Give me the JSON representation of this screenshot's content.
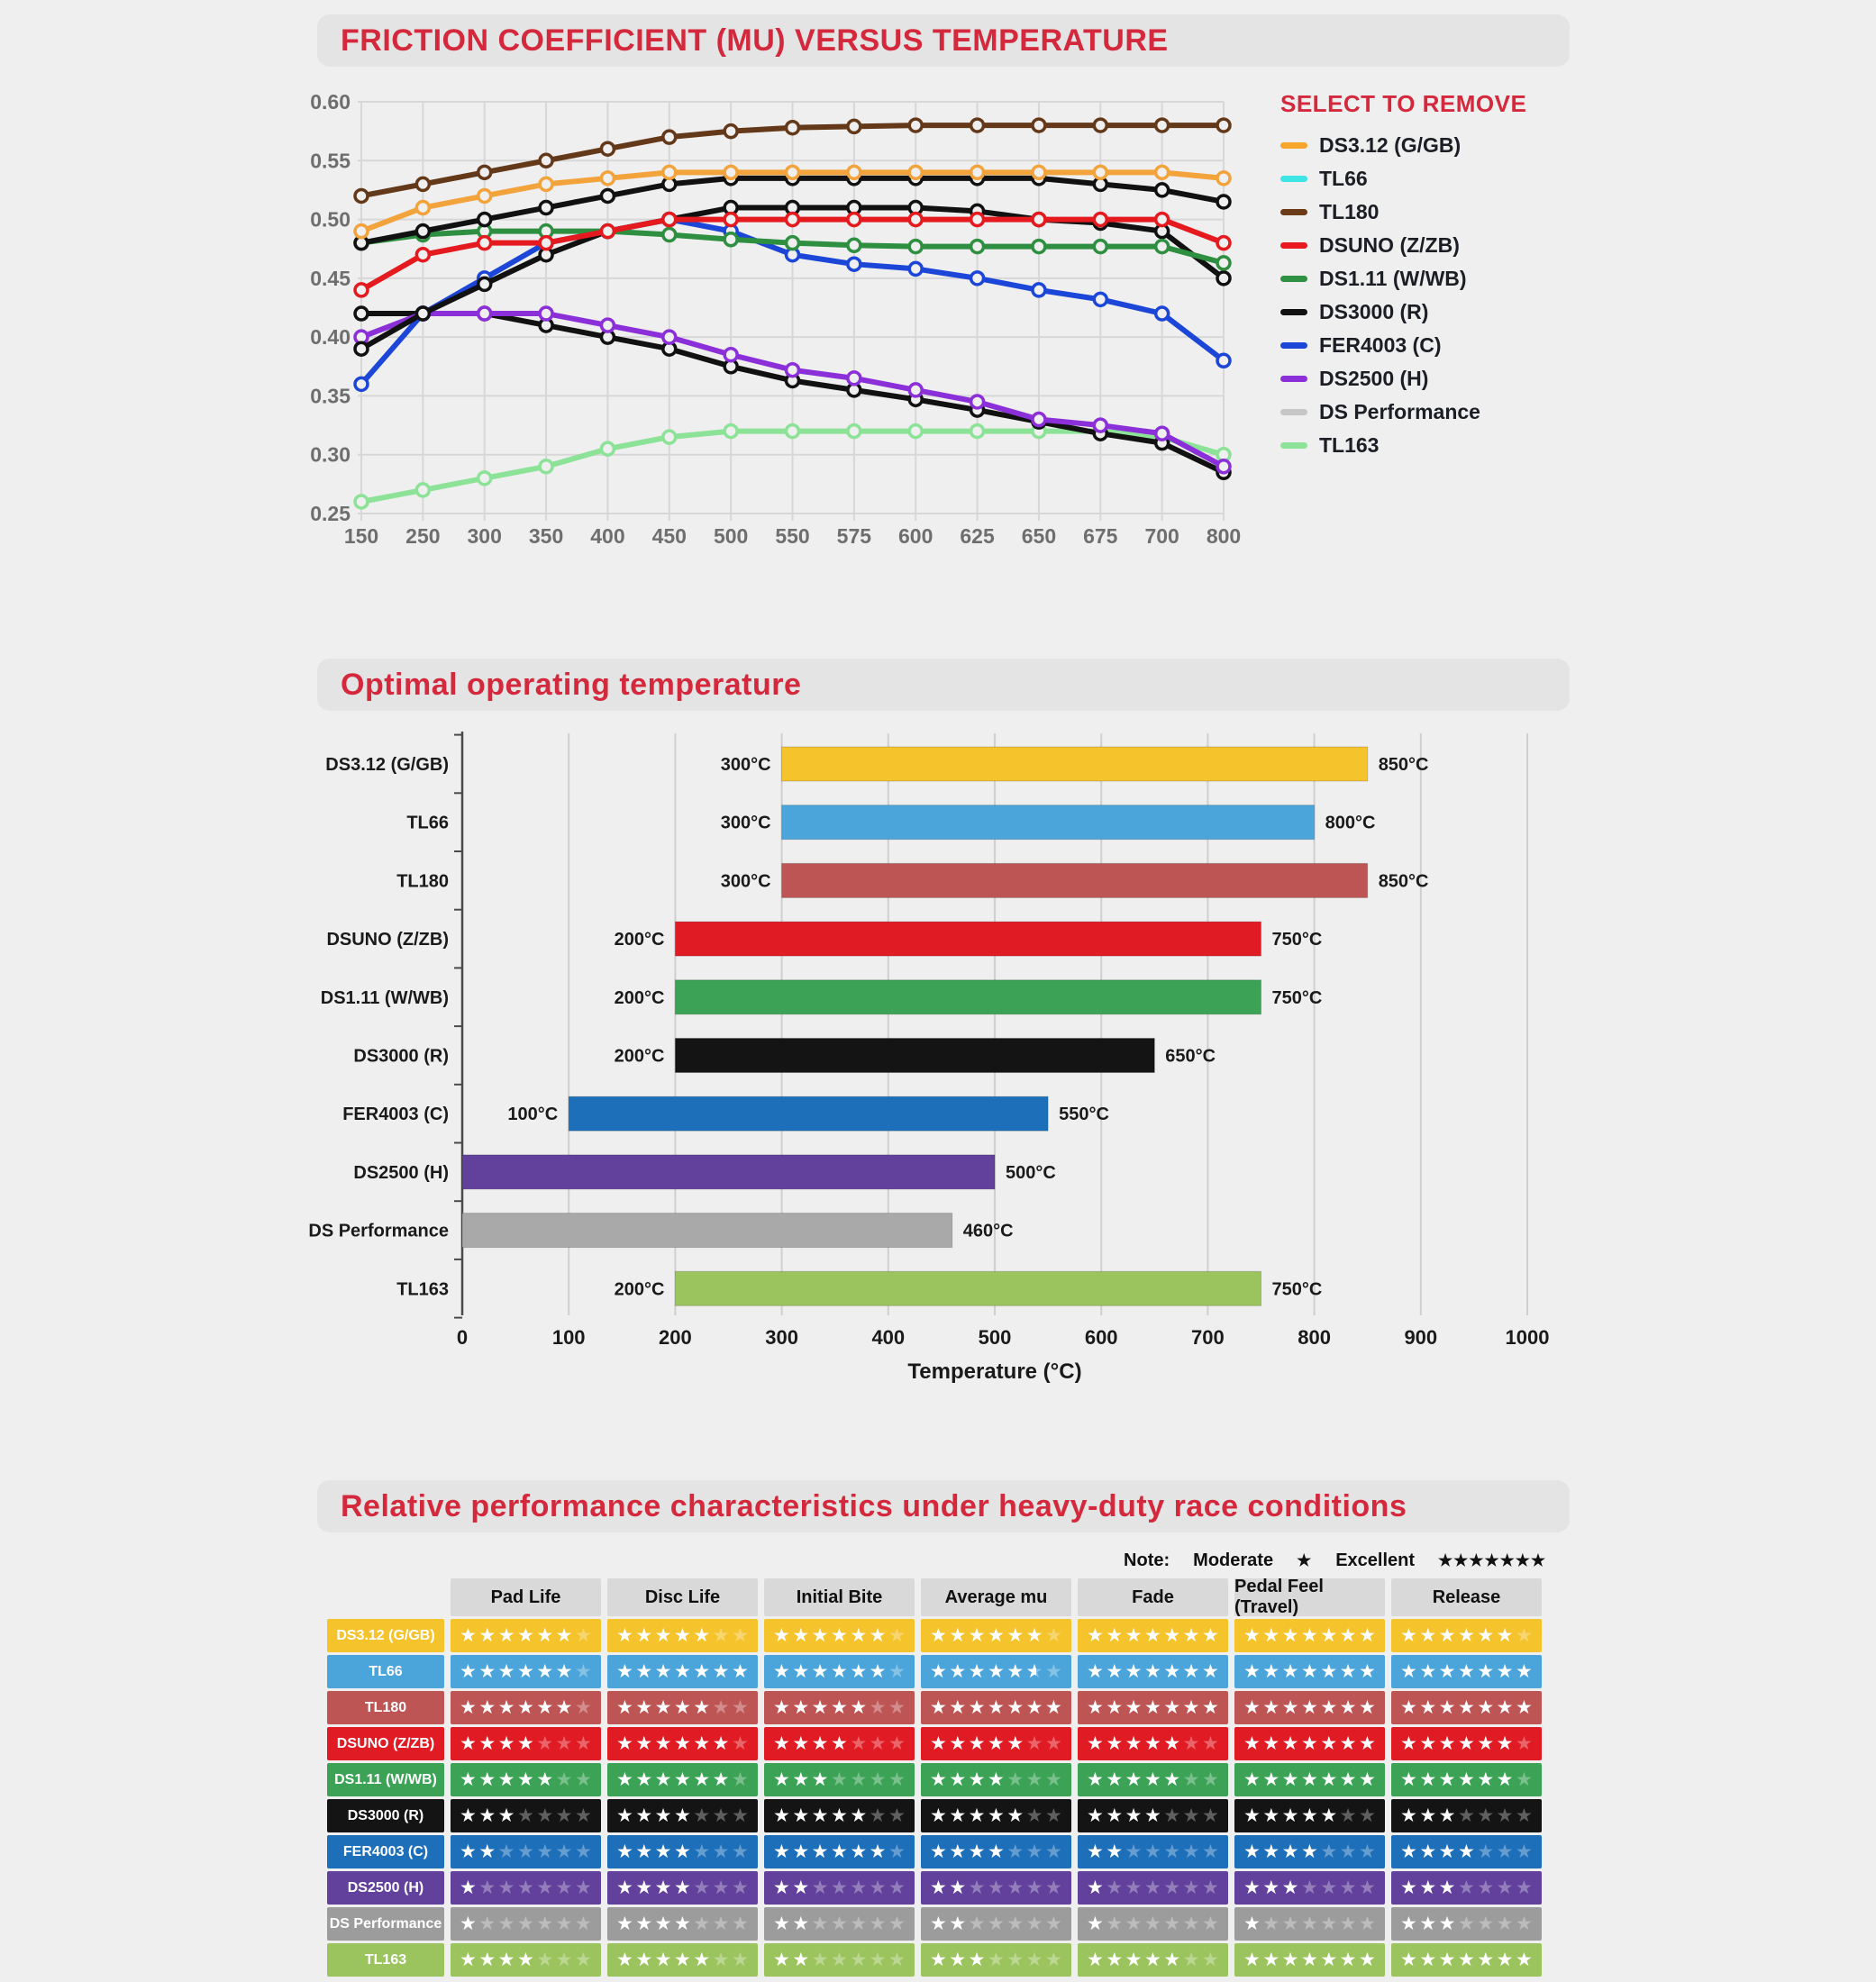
{
  "chart_data": [
    {
      "type": "line",
      "title": "FRICTION COEFFICIENT (MU) VERSUS TEMPERATURE",
      "legend_title": "SELECT TO REMOVE",
      "legend_position": "right",
      "grid": true,
      "xlabel": "",
      "ylabel": "",
      "x": [
        150,
        250,
        300,
        350,
        400,
        450,
        500,
        550,
        575,
        600,
        625,
        650,
        675,
        700,
        800
      ],
      "ylim": [
        0.25,
        0.6
      ],
      "yticks": [
        "0.60",
        "0.55",
        "0.50",
        "0.45",
        "0.40",
        "0.35",
        "0.30",
        "0.25"
      ],
      "series": [
        {
          "name": "DS3.12 (G/GB)",
          "legend_color": "#f7a62b",
          "line_color": "#f2a33c",
          "values": [
            0.49,
            0.51,
            0.52,
            0.53,
            0.535,
            0.54,
            0.54,
            0.54,
            0.54,
            0.54,
            0.54,
            0.54,
            0.54,
            0.54,
            0.535
          ]
        },
        {
          "name": "TL66",
          "legend_color": "#3fe5e5",
          "line_color": "#111111",
          "values": [
            0.48,
            0.49,
            0.5,
            0.51,
            0.52,
            0.53,
            0.535,
            0.535,
            0.535,
            0.535,
            0.535,
            0.535,
            0.53,
            0.525,
            0.515
          ]
        },
        {
          "name": "TL180",
          "legend_color": "#6b3a17",
          "line_color": "#64391a",
          "values": [
            0.52,
            0.53,
            0.54,
            0.55,
            0.56,
            0.57,
            0.575,
            0.578,
            0.579,
            0.58,
            0.58,
            0.58,
            0.58,
            0.58,
            0.58
          ]
        },
        {
          "name": "DSUNO (Z/ZB)",
          "legend_color": "#e81a20",
          "line_color": "#e51a1f",
          "values": [
            0.44,
            0.47,
            0.48,
            0.48,
            0.49,
            0.5,
            0.5,
            0.5,
            0.5,
            0.5,
            0.5,
            0.5,
            0.5,
            0.5,
            0.48
          ]
        },
        {
          "name": "DS1.11 (W/WB)",
          "legend_color": "#2e9141",
          "line_color": "#2e8f40",
          "values": [
            0.48,
            0.487,
            0.49,
            0.49,
            0.49,
            0.487,
            0.483,
            0.48,
            0.478,
            0.477,
            0.477,
            0.477,
            0.477,
            0.477,
            0.463
          ]
        },
        {
          "name": "DS3000 (R)",
          "legend_color": "#111111",
          "line_color": "#111111",
          "values": [
            0.39,
            0.42,
            0.445,
            0.47,
            0.49,
            0.5,
            0.51,
            0.51,
            0.51,
            0.51,
            0.507,
            0.5,
            0.497,
            0.49,
            0.45
          ]
        },
        {
          "name": "FER4003 (C)",
          "legend_color": "#1c46d8",
          "line_color": "#1c46d8",
          "values": [
            0.36,
            0.42,
            0.45,
            0.48,
            0.49,
            0.5,
            0.49,
            0.47,
            0.462,
            0.458,
            0.45,
            0.44,
            0.432,
            0.42,
            0.38
          ]
        },
        {
          "name": "DS2500 (H)",
          "legend_color": "#8b2fd9",
          "line_color": "#8b2fd9",
          "values": [
            0.4,
            0.42,
            0.42,
            0.42,
            0.41,
            0.4,
            0.385,
            0.372,
            0.365,
            0.355,
            0.345,
            0.33,
            0.325,
            0.318,
            0.29
          ]
        },
        {
          "name": "DS Performance",
          "legend_color": "#c6c6c6",
          "line_color": "#111111",
          "values": [
            0.42,
            0.42,
            0.42,
            0.41,
            0.4,
            0.39,
            0.375,
            0.363,
            0.355,
            0.347,
            0.338,
            0.328,
            0.318,
            0.31,
            0.285
          ]
        },
        {
          "name": "TL163",
          "legend_color": "#8ce397",
          "line_color": "#8ce397",
          "values": [
            0.26,
            0.27,
            0.28,
            0.29,
            0.305,
            0.315,
            0.32,
            0.32,
            0.32,
            0.32,
            0.32,
            0.32,
            0.32,
            0.315,
            0.3
          ]
        }
      ]
    },
    {
      "type": "bar",
      "orientation": "horizontal-range",
      "title": "Optimal operating temperature",
      "xlabel": "Temperature (°C)",
      "xlim": [
        0,
        1000
      ],
      "xticks": [
        0,
        100,
        200,
        300,
        400,
        500,
        600,
        700,
        800,
        900,
        1000
      ],
      "grid": true,
      "categories": [
        "DS3.12 (G/GB)",
        "TL66",
        "TL180",
        "DSUNO (Z/ZB)",
        "DS1.11 (W/WB)",
        "DS3000 (R)",
        "FER4003 (C)",
        "DS2500 (H)",
        "DS Performance",
        "TL163"
      ],
      "ranges": [
        [
          300,
          850
        ],
        [
          300,
          800
        ],
        [
          300,
          850
        ],
        [
          200,
          750
        ],
        [
          200,
          750
        ],
        [
          200,
          650
        ],
        [
          100,
          550
        ],
        [
          0,
          500
        ],
        [
          0,
          460
        ],
        [
          200,
          750
        ]
      ],
      "range_labels": [
        [
          "300°C",
          "850°C"
        ],
        [
          "300°C",
          "800°C"
        ],
        [
          "300°C",
          "850°C"
        ],
        [
          "200°C",
          "750°C"
        ],
        [
          "200°C",
          "750°C"
        ],
        [
          "200°C",
          "650°C"
        ],
        [
          "100°C",
          "550°C"
        ],
        [
          "",
          "500°C"
        ],
        [
          "",
          "460°C"
        ],
        [
          "200°C",
          "750°C"
        ]
      ],
      "bar_colors": [
        "#f5c32c",
        "#4ba5db",
        "#be5555",
        "#e01b24",
        "#3ca356",
        "#141414",
        "#1d6fba",
        "#61419b",
        "#a9a9a9",
        "#9cc45e"
      ]
    },
    {
      "type": "table",
      "title": "Relative performance characteristics under heavy-duty race conditions",
      "note": {
        "label": "Note:",
        "moderate_label": "Moderate",
        "moderate_stars": 1,
        "excellent_label": "Excellent",
        "excellent_stars": 7
      },
      "max_stars": 7,
      "columns": [
        "Pad Life",
        "Disc Life",
        "Initial Bite",
        "Average mu",
        "Fade",
        "Pedal Feel (Travel)",
        "Release"
      ],
      "rows": [
        {
          "name": "DS3.12 (G/GB)",
          "color": "#f5c32c",
          "stars": [
            6,
            5,
            6,
            6,
            7,
            7,
            6
          ]
        },
        {
          "name": "TL66",
          "color": "#4ba5db",
          "stars": [
            6,
            7,
            6,
            5.5,
            7,
            7,
            7
          ]
        },
        {
          "name": "TL180",
          "color": "#be5555",
          "stars": [
            6,
            5,
            5,
            7,
            7,
            7,
            7
          ]
        },
        {
          "name": "DSUNO (Z/ZB)",
          "color": "#e01b24",
          "stars": [
            4,
            6,
            4,
            5,
            5,
            7,
            6
          ]
        },
        {
          "name": "DS1.11 (W/WB)",
          "color": "#3ca356",
          "stars": [
            5,
            6,
            3,
            4,
            5,
            7,
            6
          ]
        },
        {
          "name": "DS3000 (R)",
          "color": "#141414",
          "stars": [
            3,
            4,
            5,
            5,
            4,
            5,
            3
          ]
        },
        {
          "name": "FER4003 (C)",
          "color": "#1d6fba",
          "stars": [
            2,
            4,
            6,
            4,
            2,
            4,
            4
          ]
        },
        {
          "name": "DS2500 (H)",
          "color": "#61419b",
          "stars": [
            1,
            4,
            2,
            2,
            1,
            3,
            3
          ]
        },
        {
          "name": "DS Performance",
          "color": "#9c9c9c",
          "stars": [
            1,
            4,
            2,
            2,
            1,
            1,
            3
          ]
        },
        {
          "name": "TL163",
          "color": "#9cc45e",
          "stars": [
            4,
            5,
            2,
            3,
            5,
            7,
            7
          ]
        }
      ]
    }
  ]
}
